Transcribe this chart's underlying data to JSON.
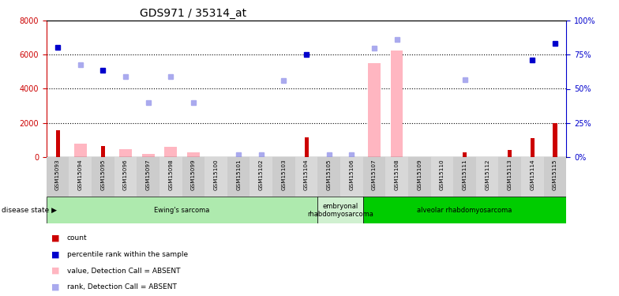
{
  "title": "GDS971 / 35314_at",
  "samples": [
    "GSM15093",
    "GSM15094",
    "GSM15095",
    "GSM15096",
    "GSM15097",
    "GSM15098",
    "GSM15099",
    "GSM15100",
    "GSM15101",
    "GSM15102",
    "GSM15103",
    "GSM15104",
    "GSM15105",
    "GSM15106",
    "GSM15107",
    "GSM15108",
    "GSM15109",
    "GSM15110",
    "GSM15111",
    "GSM15112",
    "GSM15113",
    "GSM15114",
    "GSM15115"
  ],
  "pink_bar_values": [
    null,
    800,
    null,
    430,
    190,
    590,
    280,
    null,
    null,
    null,
    null,
    null,
    null,
    null,
    5500,
    6250,
    null,
    null,
    null,
    null,
    null,
    null,
    null
  ],
  "red_bar_values": [
    1550,
    null,
    620,
    null,
    null,
    null,
    null,
    null,
    null,
    null,
    null,
    1150,
    null,
    null,
    null,
    null,
    null,
    null,
    270,
    null,
    420,
    1100,
    2000
  ],
  "blue_square_values": [
    6450,
    null,
    5100,
    null,
    null,
    null,
    null,
    null,
    null,
    null,
    null,
    6000,
    null,
    null,
    null,
    null,
    null,
    null,
    null,
    null,
    null,
    5700,
    6650
  ],
  "light_blue_square_values": [
    null,
    5400,
    null,
    4700,
    3200,
    4700,
    3200,
    null,
    150,
    150,
    4500,
    null,
    150,
    150,
    6400,
    6900,
    null,
    null,
    4550,
    null,
    null,
    null,
    null
  ],
  "ylim_left": [
    0,
    8000
  ],
  "ylim_right": [
    0,
    100
  ],
  "yticks_left": [
    0,
    2000,
    4000,
    6000,
    8000
  ],
  "yticks_right": [
    0,
    25,
    50,
    75,
    100
  ],
  "ytick_labels_right": [
    "0%",
    "25%",
    "50%",
    "75%",
    "100%"
  ],
  "disease_groups": [
    {
      "label": "Ewing's sarcoma",
      "start": 0,
      "end": 12,
      "color": "#aeeaae"
    },
    {
      "label": "embryonal\nrhabdomyosarcoma",
      "start": 12,
      "end": 14,
      "color": "#d0f0d0"
    },
    {
      "label": "alveolar rhabdomyosarcoma",
      "start": 14,
      "end": 23,
      "color": "#00cc00"
    }
  ],
  "pink_bar_color": "#ffb6c1",
  "red_bar_color": "#cc0000",
  "blue_square_color": "#0000cc",
  "light_blue_square_color": "#aaaaee",
  "left_label_color": "#cc0000",
  "right_label_color": "#0000cc",
  "disease_state_label": "disease state",
  "title_fontsize": 10,
  "tick_fontsize": 7,
  "label_fontsize": 7.5
}
